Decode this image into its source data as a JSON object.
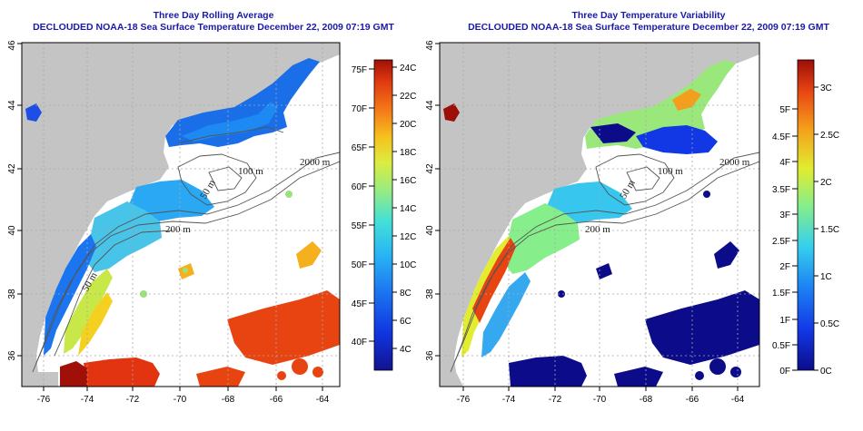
{
  "left_panel": {
    "title_line1": "Three Day Rolling Average",
    "title_line2": "DECLOUDED NOAA-18 Sea Surface Temperature December 22, 2009 07:19 GMT",
    "x_ticks": [
      "-76",
      "-74",
      "-72",
      "-70",
      "-68",
      "-66",
      "-64"
    ],
    "y_ticks": [
      "36",
      "38",
      "40",
      "42",
      "44",
      "46"
    ],
    "isobath_labels": [
      "2000 m",
      "100 m",
      "50 m",
      "200 m",
      "50 m"
    ],
    "colorbar": {
      "fahrenheit": [
        "40F",
        "45F",
        "50F",
        "55F",
        "60F",
        "65F",
        "70F",
        "75F"
      ],
      "celsius": [
        "4C",
        "6C",
        "8C",
        "10C",
        "12C",
        "14C",
        "16C",
        "18C",
        "20C",
        "22C",
        "24C"
      ],
      "colors": [
        "#13128e",
        "#1035e0",
        "#1b74f0",
        "#28b4f4",
        "#43e0d8",
        "#98ec80",
        "#dcec40",
        "#f6c21e",
        "#f47818",
        "#e03a10",
        "#a01008"
      ]
    }
  },
  "right_panel": {
    "title_line1": "Three Day Temperature Variability",
    "title_line2": "DECLOUDED NOAA-18 Sea Surface Temperature December 22, 2009 07:19 GMT",
    "x_ticks": [
      "-76",
      "-74",
      "-72",
      "-70",
      "-68",
      "-66",
      "-64"
    ],
    "y_ticks": [
      "36",
      "38",
      "40",
      "42",
      "44",
      "46"
    ],
    "isobath_labels": [
      "2000 m",
      "100 m",
      "50 m",
      "200 m"
    ],
    "colorbar": {
      "fahrenheit": [
        "0F",
        "0.5F",
        "1F",
        "1.5F",
        "2F",
        "2.5F",
        "3F",
        "3.5F",
        "4F",
        "4.5F",
        "5F"
      ],
      "celsius": [
        "0C",
        "0.5C",
        "1C",
        "1.5C",
        "2C",
        "2.5C",
        "3C"
      ],
      "colors": [
        "#0c0c8a",
        "#1238e6",
        "#1c84f4",
        "#36d0ec",
        "#86ee8a",
        "#e2ec30",
        "#f49e1a",
        "#e84412",
        "#9c0e08"
      ]
    }
  },
  "map_colors": {
    "land": "#c4c4c4",
    "ocean": "#ffffff",
    "grid": "#a8a8a8",
    "isobath": "#555555"
  }
}
